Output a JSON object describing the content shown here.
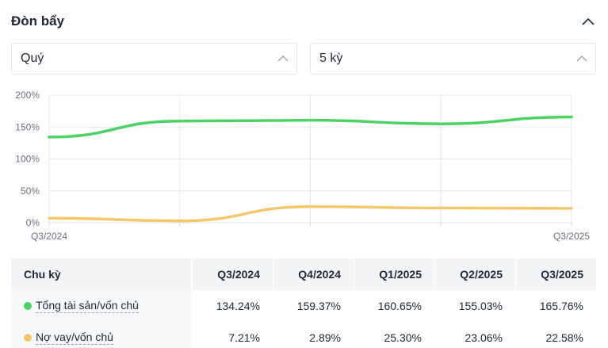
{
  "header": {
    "title": "Đòn bẩy",
    "collapse_icon": "chevron-up-icon"
  },
  "filters": {
    "period_type": "Quý",
    "period_count": "5 kỳ"
  },
  "colors": {
    "green": "#4cd265",
    "yellow": "#f5c76a",
    "grid": "#e5e7eb"
  },
  "chart_data": {
    "type": "line",
    "categories": [
      "Q3/2024",
      "Q4/2024",
      "Q1/2025",
      "Q2/2025",
      "Q3/2025"
    ],
    "x_tick_labels": [
      "Q3/2024",
      "Q3/2025"
    ],
    "y_tick_labels": [
      "200%",
      "150%",
      "100%",
      "50%",
      "0%"
    ],
    "ylim": [
      0,
      200
    ],
    "series": [
      {
        "name": "Tổng tài sản/vốn chủ",
        "color": "#4cd265",
        "values": [
          134.24,
          159.37,
          160.65,
          155.03,
          165.76
        ]
      },
      {
        "name": "Nợ vay/vốn chủ",
        "color": "#f5c76a",
        "values": [
          7.21,
          2.89,
          25.3,
          23.06,
          22.58
        ]
      }
    ]
  },
  "table": {
    "header_label": "Chu kỳ",
    "columns": [
      "Q3/2024",
      "Q4/2024",
      "Q1/2025",
      "Q2/2025",
      "Q3/2025"
    ],
    "rows": [
      {
        "label": "Tổng tài sản/vốn chủ",
        "values": [
          "134.24%",
          "159.37%",
          "160.65%",
          "155.03%",
          "165.76%"
        ]
      },
      {
        "label": "Nợ vay/vốn chủ",
        "values": [
          "7.21%",
          "2.89%",
          "25.30%",
          "23.06%",
          "22.58%"
        ]
      }
    ]
  }
}
